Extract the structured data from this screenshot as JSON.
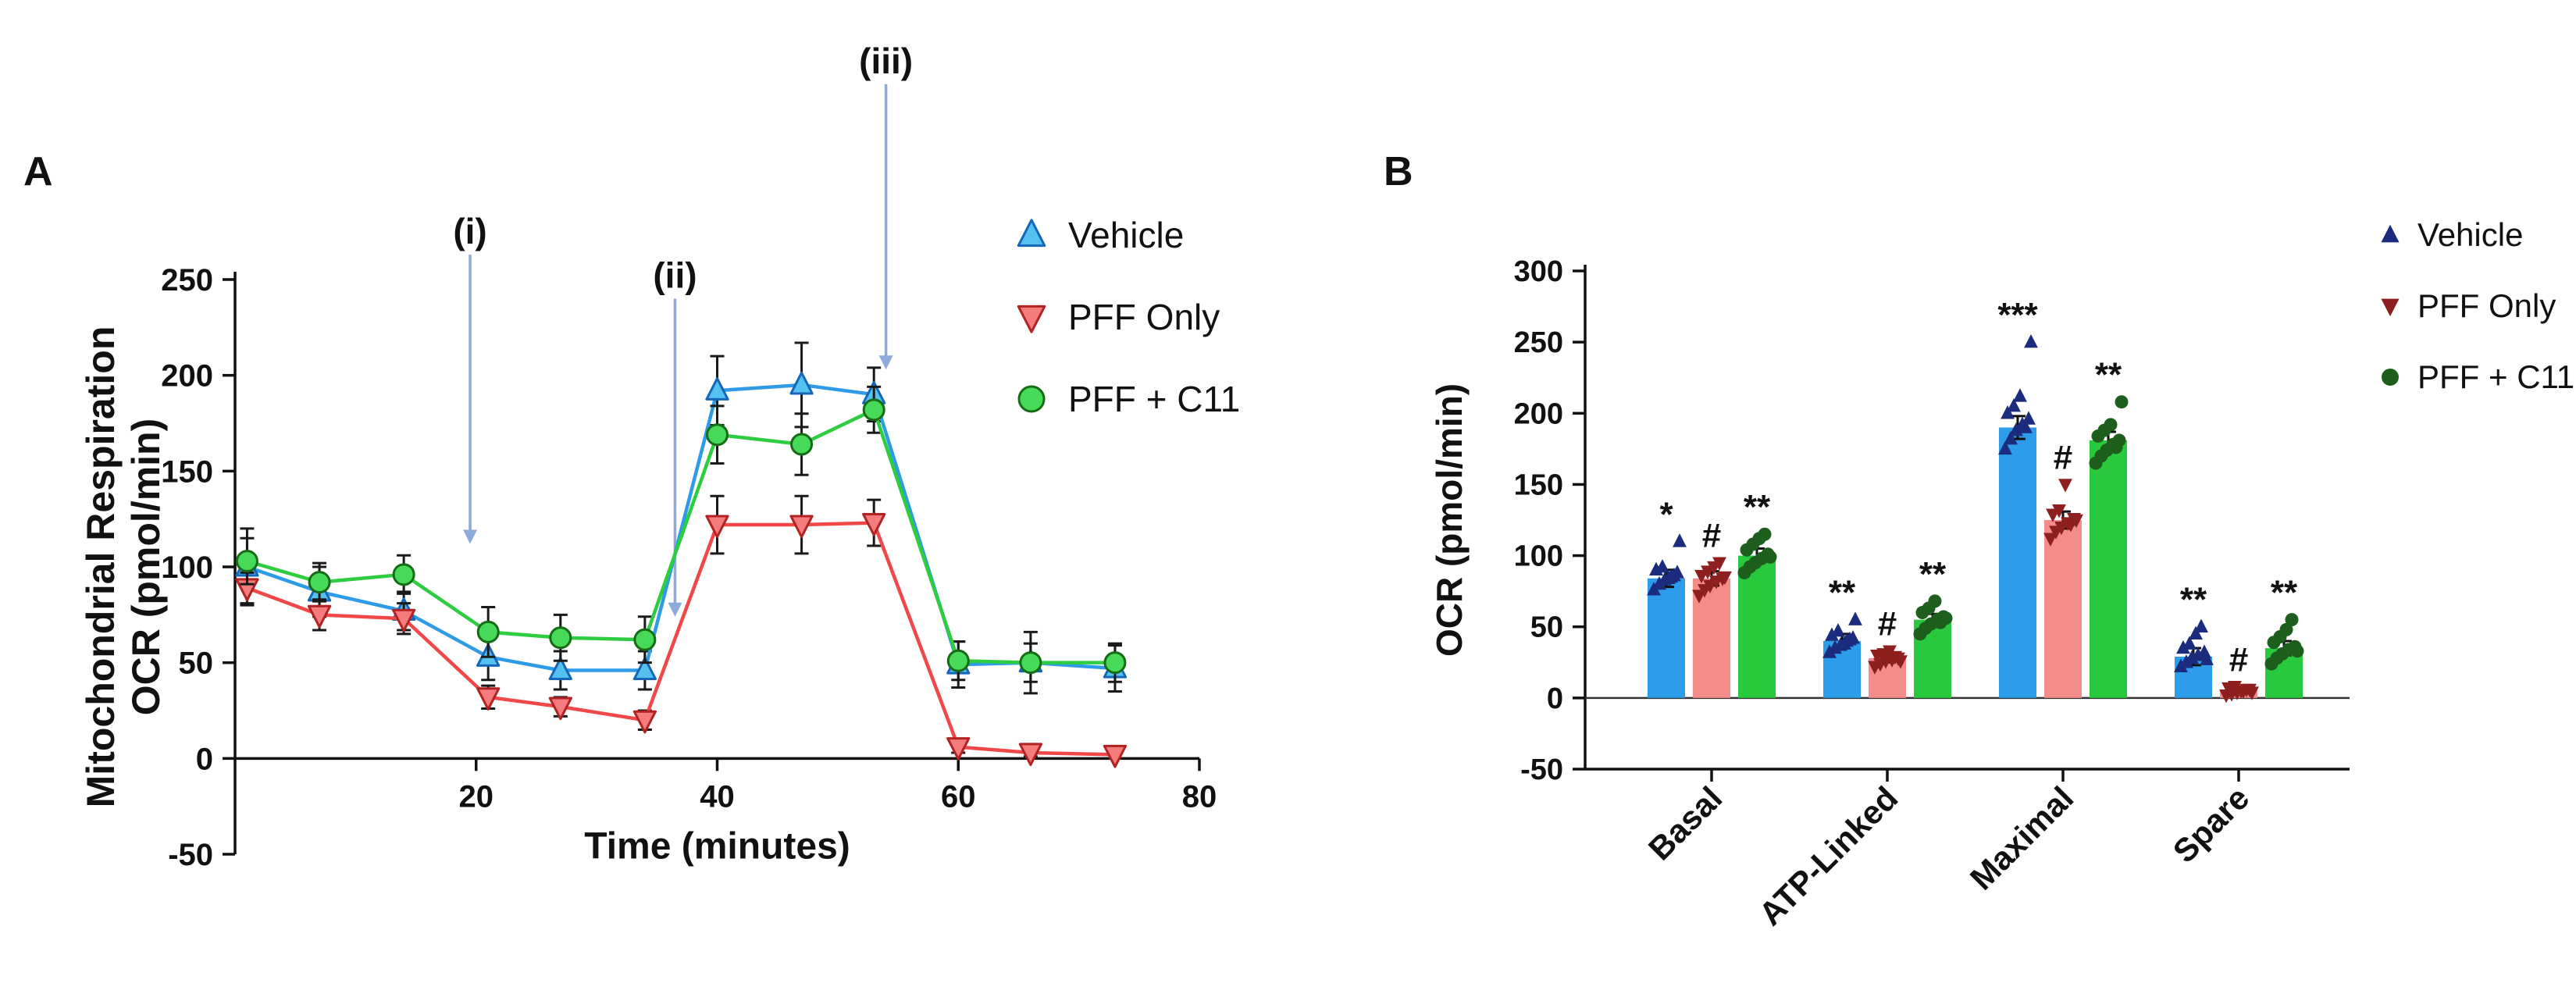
{
  "figure": {
    "panels": [
      {
        "label": "A"
      },
      {
        "label": "B"
      }
    ]
  },
  "chart_data": [
    {
      "id": "panel-a",
      "type": "line",
      "xlabel": "Time (minutes)",
      "ylabel_lines": [
        "Mitochondrial Respiration",
        "OCR (pmol/min)"
      ],
      "xlim": [
        0,
        80
      ],
      "ylim": [
        -50,
        250
      ],
      "xticks": [
        20,
        40,
        60,
        80
      ],
      "yticks": [
        250,
        200,
        150,
        100,
        50,
        0,
        -50
      ],
      "x": [
        1,
        7,
        14,
        21,
        27,
        34,
        40,
        47,
        53,
        60,
        66,
        73
      ],
      "series": [
        {
          "name": "Vehicle",
          "marker": "triangle-up",
          "line_color": "#2E9BE6",
          "marker_fill": "#55C1F0",
          "marker_stroke": "#1566B8",
          "values": [
            100,
            87,
            77,
            53,
            46,
            46,
            192,
            195,
            190,
            49,
            50,
            47
          ],
          "errors": [
            20,
            13,
            10,
            12,
            10,
            10,
            18,
            22,
            14,
            12,
            16,
            12
          ]
        },
        {
          "name": "PFF Only",
          "marker": "triangle-down",
          "line_color": "#F04848",
          "marker_fill": "#F57C7C",
          "marker_stroke": "#B22222",
          "values": [
            89,
            75,
            73,
            32,
            27,
            20,
            122,
            122,
            123,
            6,
            3,
            2
          ],
          "errors": [
            8,
            8,
            8,
            6,
            5,
            5,
            15,
            15,
            12,
            3,
            2,
            2
          ]
        },
        {
          "name": "PFF + C11",
          "marker": "circle",
          "line_color": "#2ECC40",
          "marker_fill": "#47D958",
          "marker_stroke": "#166B16",
          "values": [
            103,
            92,
            96,
            66,
            63,
            62,
            169,
            164,
            182,
            51,
            50,
            50
          ],
          "errors": [
            12,
            10,
            10,
            13,
            12,
            12,
            15,
            16,
            12,
            10,
            10,
            10
          ]
        }
      ],
      "annotations": [
        {
          "label": "(i)",
          "time": 19.5,
          "tip_value": 112,
          "tail_value": 263
        },
        {
          "label": "(ii)",
          "time": 36.5,
          "tip_value": 74,
          "tail_value": 240
        },
        {
          "label": "(iii)",
          "time": 54,
          "tip_value": 203,
          "tail_value": 352
        }
      ],
      "arrow_color": "#8EAADB",
      "error_bar_color": "#1a1a1a",
      "legend_labels": [
        "Vehicle",
        "PFF Only",
        "PFF + C11"
      ]
    },
    {
      "id": "panel-b",
      "type": "bar",
      "ylabel": "OCR (pmol/min)",
      "ylim": [
        -50,
        300
      ],
      "yticks": [
        300,
        250,
        200,
        150,
        100,
        50,
        0,
        -50
      ],
      "categories": [
        "Basal",
        "ATP-Linked",
        "Maximal",
        "Spare"
      ],
      "series": [
        {
          "name": "Vehicle",
          "marker": "triangle-up",
          "bar_color": "#2D9CEA",
          "point_color": "#1B2B7E",
          "means": [
            84,
            40,
            190,
            29
          ],
          "errors": [
            6,
            5,
            8,
            6
          ],
          "sig": [
            "*",
            "**",
            "***",
            "**"
          ],
          "points": [
            [
              76,
              80,
              83,
              85,
              88,
              90,
              92,
              84,
              86,
              110
            ],
            [
              32,
              35,
              37,
              40,
              42,
              44,
              47,
              38,
              41,
              55
            ],
            [
              175,
              182,
              188,
              192,
              196,
              200,
              205,
              212,
              190,
              250
            ],
            [
              22,
              25,
              28,
              30,
              32,
              35,
              38,
              45,
              50,
              27
            ]
          ]
        },
        {
          "name": "PFF Only",
          "marker": "triangle-down",
          "bar_color": "#F58C8C",
          "point_color": "#8E1F1F",
          "means": [
            84,
            28,
            125,
            6
          ],
          "errors": [
            5,
            3,
            6,
            2
          ],
          "sig": [
            "#",
            "#",
            "#",
            "#"
          ],
          "points": [
            [
              72,
              76,
              79,
              82,
              84,
              86,
              89,
              92,
              95,
              85
            ],
            [
              22,
              24,
              26,
              27,
              28,
              30,
              31,
              33,
              29,
              26
            ],
            [
              112,
              117,
              120,
              123,
              126,
              129,
              132,
              150,
              122,
              125
            ],
            [
              2,
              3,
              4,
              5,
              6,
              7,
              8,
              5,
              6,
              4
            ]
          ]
        },
        {
          "name": "PFF + C11",
          "marker": "circle",
          "bar_color": "#29C93E",
          "point_color": "#1D5E1D",
          "means": [
            100,
            55,
            181,
            35
          ],
          "errors": [
            5,
            4,
            6,
            5
          ],
          "sig": [
            "**",
            "**",
            "**",
            "**"
          ],
          "points": [
            [
              88,
              92,
              95,
              98,
              101,
              104,
              108,
              112,
              115,
              99
            ],
            [
              45,
              49,
              52,
              55,
              57,
              60,
              63,
              68,
              53,
              56
            ],
            [
              165,
              170,
              174,
              178,
              181,
              184,
              188,
              192,
              176,
              208
            ],
            [
              24,
              28,
              31,
              34,
              36,
              39,
              43,
              48,
              55,
              33
            ]
          ]
        }
      ],
      "error_bar_color": "#111111",
      "baseline_color": "#333333",
      "legend_labels": [
        "Vehicle",
        "PFF Only",
        "PFF + C11"
      ]
    }
  ]
}
